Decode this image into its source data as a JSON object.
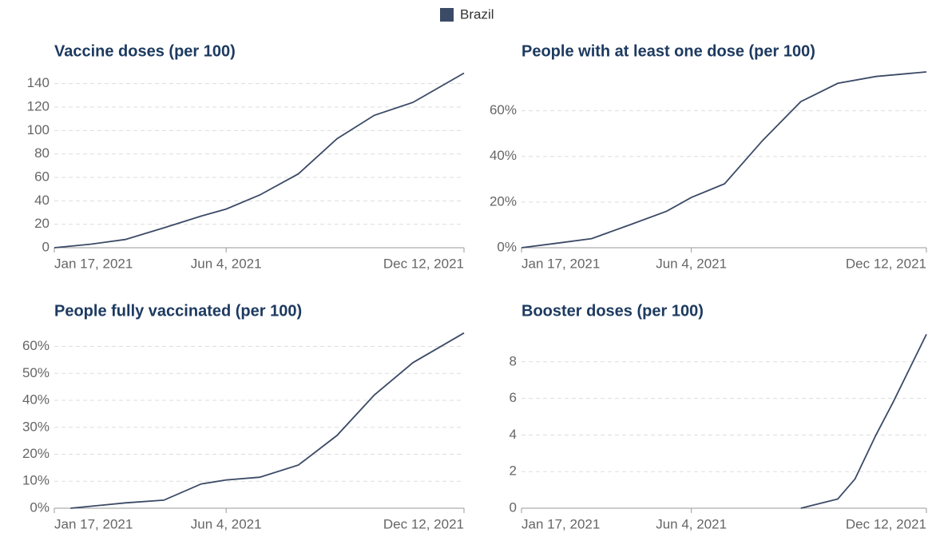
{
  "legend": [
    {
      "name": "Brazil",
      "color": "#3b4a66"
    }
  ],
  "chart_data": [
    {
      "type": "line",
      "title": "Vaccine doses (per 100)",
      "x": [
        "2021-01-17",
        "2021-02-15",
        "2021-03-15",
        "2021-04-15",
        "2021-05-15",
        "2021-06-04",
        "2021-07-01",
        "2021-08-01",
        "2021-09-01",
        "2021-10-01",
        "2021-11-01",
        "2021-12-12"
      ],
      "values": [
        0,
        3,
        7,
        17,
        27,
        33,
        45,
        63,
        93,
        113,
        124,
        149
      ],
      "xlim": [
        "2021-01-17",
        "2021-12-12"
      ],
      "xticks": [
        {
          "value": "2021-01-17",
          "label": "Jan 17, 2021"
        },
        {
          "value": "2021-06-04",
          "label": "Jun 4, 2021"
        },
        {
          "value": "2021-12-12",
          "label": "Dec 12, 2021"
        }
      ],
      "ylim": [
        0,
        150
      ],
      "yticks": [
        0,
        20,
        40,
        60,
        80,
        100,
        120,
        140
      ],
      "grid": true
    },
    {
      "type": "line",
      "title": "People with at least one dose (per 100)",
      "x": [
        "2021-01-17",
        "2021-02-15",
        "2021-03-15",
        "2021-04-15",
        "2021-05-15",
        "2021-06-04",
        "2021-07-01",
        "2021-08-01",
        "2021-09-01",
        "2021-10-01",
        "2021-11-01",
        "2021-12-12"
      ],
      "values": [
        0,
        2,
        4,
        10,
        16,
        22,
        28,
        47,
        64,
        72,
        75,
        77
      ],
      "xlim": [
        "2021-01-17",
        "2021-12-12"
      ],
      "xticks": [
        {
          "value": "2021-01-17",
          "label": "Jan 17, 2021"
        },
        {
          "value": "2021-06-04",
          "label": "Jun 4, 2021"
        },
        {
          "value": "2021-12-12",
          "label": "Dec 12, 2021"
        }
      ],
      "ylim": [
        0,
        77
      ],
      "yticks": [
        {
          "value": 0,
          "label": "0%"
        },
        {
          "value": 20,
          "label": "20%"
        },
        {
          "value": 40,
          "label": "40%"
        },
        {
          "value": 60,
          "label": "60%"
        }
      ],
      "grid": true
    },
    {
      "type": "line",
      "title": "People fully vaccinated (per 100)",
      "x": [
        "2021-01-30",
        "2021-03-15",
        "2021-04-15",
        "2021-05-15",
        "2021-06-04",
        "2021-07-01",
        "2021-08-01",
        "2021-09-01",
        "2021-10-01",
        "2021-11-01",
        "2021-12-12"
      ],
      "values": [
        0,
        2,
        3,
        9,
        10.5,
        11.5,
        16,
        27,
        42,
        54,
        65
      ],
      "xlim": [
        "2021-01-17",
        "2021-12-12"
      ],
      "xticks": [
        {
          "value": "2021-01-17",
          "label": "Jan 17, 2021"
        },
        {
          "value": "2021-06-04",
          "label": "Jun 4, 2021"
        },
        {
          "value": "2021-12-12",
          "label": "Dec 12, 2021"
        }
      ],
      "ylim": [
        0,
        65.5
      ],
      "yticks": [
        {
          "value": 0,
          "label": "0%"
        },
        {
          "value": 10,
          "label": "10%"
        },
        {
          "value": 20,
          "label": "20%"
        },
        {
          "value": 30,
          "label": "30%"
        },
        {
          "value": 40,
          "label": "40%"
        },
        {
          "value": 50,
          "label": "50%"
        },
        {
          "value": 60,
          "label": "60%"
        }
      ],
      "grid": true
    },
    {
      "type": "line",
      "title": "Booster doses (per 100)",
      "x": [
        "2021-09-01",
        "2021-10-01",
        "2021-10-15",
        "2021-11-01",
        "2021-11-15",
        "2021-12-12"
      ],
      "values": [
        0,
        0.5,
        1.6,
        4,
        5.8,
        9.5
      ],
      "xlim": [
        "2021-01-17",
        "2021-12-12"
      ],
      "xticks": [
        {
          "value": "2021-01-17",
          "label": "Jan 17, 2021"
        },
        {
          "value": "2021-06-04",
          "label": "Jun 4, 2021"
        },
        {
          "value": "2021-12-12",
          "label": "Dec 12, 2021"
        }
      ],
      "ylim": [
        0,
        9.65
      ],
      "yticks": [
        0,
        2,
        4,
        6,
        8
      ],
      "grid": true
    }
  ]
}
